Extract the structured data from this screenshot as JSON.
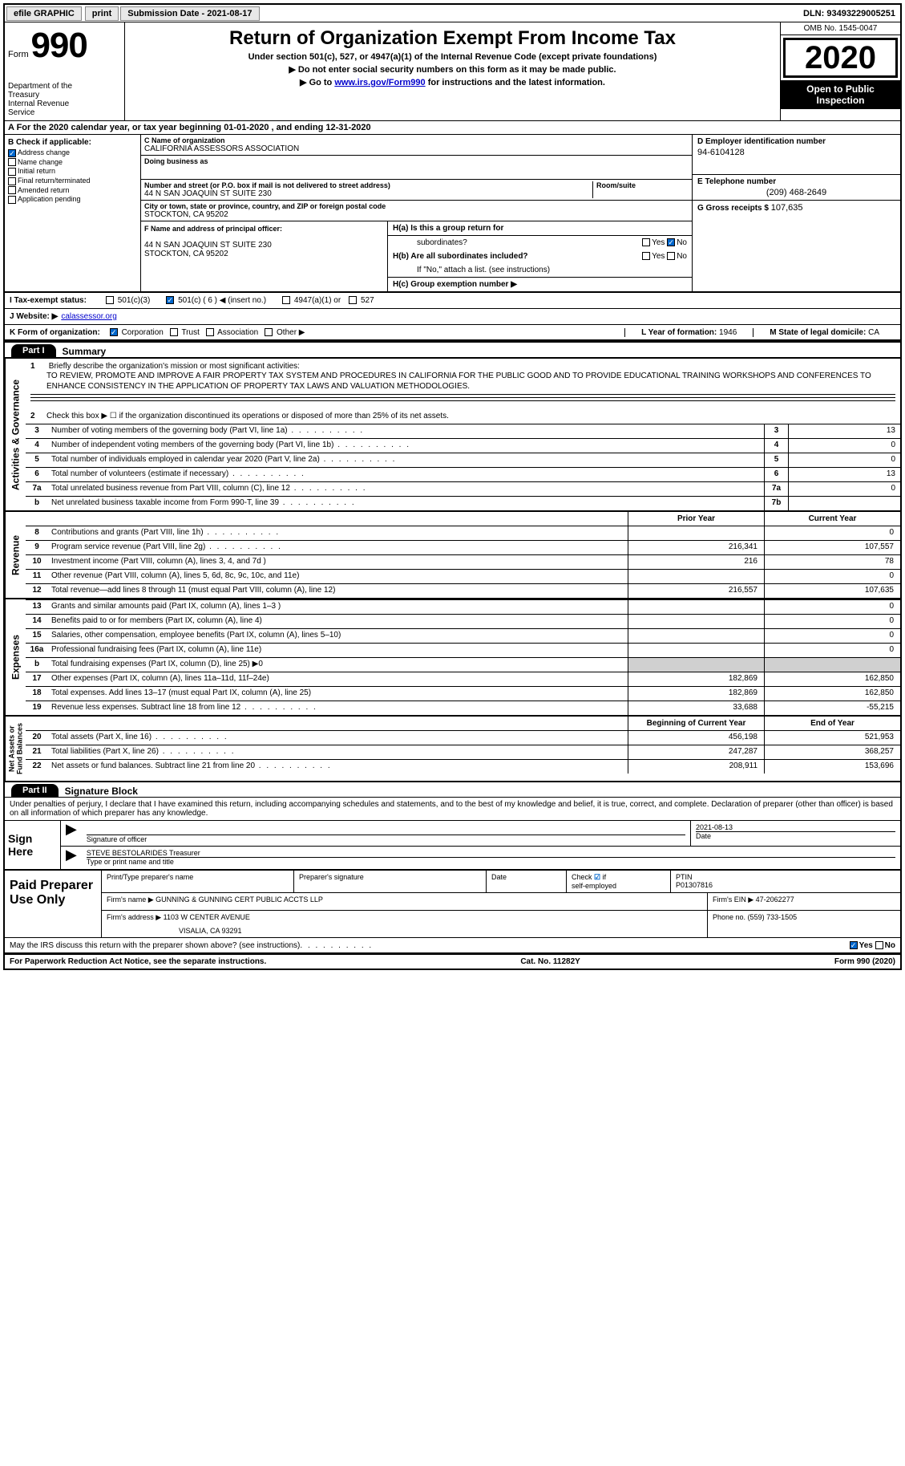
{
  "colors": {
    "black": "#000000",
    "white": "#ffffff",
    "grey_bg": "#d0d0d0",
    "btn_bg": "#e8e8e8",
    "link_blue": "#0000cc",
    "check_blue": "#0066cc"
  },
  "top": {
    "efile": "efile GRAPHIC",
    "print": "print",
    "submission": "Submission Date - 2021-08-17",
    "dln": "DLN: 93493229005251"
  },
  "header": {
    "form_word": "Form",
    "form_num": "990",
    "dept1": "Department of the",
    "dept2": "Treasury",
    "dept3": "Internal Revenue",
    "dept4": "Service",
    "title": "Return of Organization Exempt From Income Tax",
    "subtitle": "Under section 501(c), 527, or 4947(a)(1) of the Internal Revenue Code (except private foundations)",
    "note1": "▶ Do not enter social security numbers on this form as it may be made public.",
    "note2_pre": "▶ Go to ",
    "note2_link": "www.irs.gov/Form990",
    "note2_post": " for instructions and the latest information.",
    "omb": "OMB No. 1545-0047",
    "year": "2020",
    "open1": "Open to Public",
    "open2": "Inspection"
  },
  "sectionA": "A For the 2020 calendar year, or tax year beginning 01-01-2020     , and ending 12-31-2020",
  "colB": {
    "label": "B Check if applicable:",
    "opts": [
      "Address change",
      "Name change",
      "Initial return",
      "Final return/terminated",
      "Amended return",
      "Application pending"
    ]
  },
  "colC": {
    "name_label": "C Name of organization",
    "name": "CALIFORNIA ASSESSORS ASSOCIATION",
    "dba_label": "Doing business as",
    "addr_label": "Number and street (or P.O. box if mail is not delivered to street address)",
    "addr": "44 N SAN JOAQUIN ST SUITE 230",
    "room_label": "Room/suite",
    "city_label": "City or town, state or province, country, and ZIP or foreign postal code",
    "city": "STOCKTON, CA  95202"
  },
  "colD": {
    "ein_label": "D Employer identification number",
    "ein": "94-6104128",
    "phone_label": "E Telephone number",
    "phone": "(209) 468-2649",
    "gross_label": "G Gross receipts $",
    "gross": "107,635"
  },
  "rowF": {
    "label": "F  Name and address of principal officer:",
    "addr1": "44 N SAN JOAQUIN ST SUITE 230",
    "addr2": "STOCKTON, CA  95202"
  },
  "rowH": {
    "ha": "H(a)  Is this a group return for",
    "ha2": "subordinates?",
    "hb": "H(b)  Are all subordinates included?",
    "hb_note": "If \"No,\" attach a list. (see instructions)",
    "hc": "H(c)  Group exemption number ▶",
    "yes": "Yes",
    "no": "No"
  },
  "rowI": {
    "label": "I   Tax-exempt status:",
    "o1": "501(c)(3)",
    "o2": "501(c) ( 6 ) ◀ (insert no.)",
    "o3": "4947(a)(1) or",
    "o4": "527"
  },
  "rowJ": {
    "label": "J   Website: ▶",
    "val": "calassessor.org"
  },
  "rowK": {
    "label": "K Form of organization:",
    "o1": "Corporation",
    "o2": "Trust",
    "o3": "Association",
    "o4": "Other ▶"
  },
  "rowL": {
    "label": "L Year of formation:",
    "val": "1946"
  },
  "rowM": {
    "label": "M State of legal domicile:",
    "val": "CA"
  },
  "part1": {
    "tag": "Part I",
    "title": "Summary",
    "q1_label": "1",
    "q1": "Briefly describe the organization's mission or most significant activities:",
    "q1_text": "TO REVIEW, PROMOTE AND IMPROVE A FAIR PROPERTY TAX SYSTEM AND PROCEDURES IN CALIFORNIA FOR THE PUBLIC GOOD AND TO PROVIDE EDUCATIONAL TRAINING WORKSHOPS AND CONFERENCES TO ENHANCE CONSISTENCY IN THE APPLICATION OF PROPERTY TAX LAWS AND VALUATION METHODOLOGIES.",
    "q2": "Check this box ▶ ☐  if the organization discontinued its operations or disposed of more than 25% of its net assets.",
    "rows": [
      {
        "n": "3",
        "label": "Number of voting members of the governing body (Part VI, line 1a)",
        "box": "3",
        "val": "13"
      },
      {
        "n": "4",
        "label": "Number of independent voting members of the governing body (Part VI, line 1b)",
        "box": "4",
        "val": "0"
      },
      {
        "n": "5",
        "label": "Total number of individuals employed in calendar year 2020 (Part V, line 2a)",
        "box": "5",
        "val": "0"
      },
      {
        "n": "6",
        "label": "Total number of volunteers (estimate if necessary)",
        "box": "6",
        "val": "13"
      },
      {
        "n": "7a",
        "label": "Total unrelated business revenue from Part VIII, column (C), line 12",
        "box": "7a",
        "val": "0"
      },
      {
        "n": "b",
        "label": "Net unrelated business taxable income from Form 990-T, line 39",
        "box": "7b",
        "val": ""
      }
    ],
    "col_prior": "Prior Year",
    "col_current": "Current Year",
    "revenue": [
      {
        "n": "8",
        "label": "Contributions and grants (Part VIII, line 1h)",
        "v1": "",
        "v2": "0"
      },
      {
        "n": "9",
        "label": "Program service revenue (Part VIII, line 2g)",
        "v1": "216,341",
        "v2": "107,557"
      },
      {
        "n": "10",
        "label": "Investment income (Part VIII, column (A), lines 3, 4, and 7d )",
        "v1": "216",
        "v2": "78"
      },
      {
        "n": "11",
        "label": "Other revenue (Part VIII, column (A), lines 5, 6d, 8c, 9c, 10c, and 11e)",
        "v1": "",
        "v2": "0"
      },
      {
        "n": "12",
        "label": "Total revenue—add lines 8 through 11 (must equal Part VIII, column (A), line 12)",
        "v1": "216,557",
        "v2": "107,635"
      }
    ],
    "expenses": [
      {
        "n": "13",
        "label": "Grants and similar amounts paid (Part IX, column (A), lines 1–3 )",
        "v1": "",
        "v2": "0"
      },
      {
        "n": "14",
        "label": "Benefits paid to or for members (Part IX, column (A), line 4)",
        "v1": "",
        "v2": "0"
      },
      {
        "n": "15",
        "label": "Salaries, other compensation, employee benefits (Part IX, column (A), lines 5–10)",
        "v1": "",
        "v2": "0"
      },
      {
        "n": "16a",
        "label": "Professional fundraising fees (Part IX, column (A), line 11e)",
        "v1": "",
        "v2": "0"
      },
      {
        "n": "b",
        "label": "Total fundraising expenses (Part IX, column (D), line 25) ▶0",
        "v1": "grey",
        "v2": "grey"
      },
      {
        "n": "17",
        "label": "Other expenses (Part IX, column (A), lines 11a–11d, 11f–24e)",
        "v1": "182,869",
        "v2": "162,850"
      },
      {
        "n": "18",
        "label": "Total expenses. Add lines 13–17 (must equal Part IX, column (A), line 25)",
        "v1": "182,869",
        "v2": "162,850"
      },
      {
        "n": "19",
        "label": "Revenue less expenses. Subtract line 18 from line 12",
        "v1": "33,688",
        "v2": "-55,215"
      }
    ],
    "col_begin": "Beginning of Current Year",
    "col_end": "End of Year",
    "balances": [
      {
        "n": "20",
        "label": "Total assets (Part X, line 16)",
        "v1": "456,198",
        "v2": "521,953"
      },
      {
        "n": "21",
        "label": "Total liabilities (Part X, line 26)",
        "v1": "247,287",
        "v2": "368,257"
      },
      {
        "n": "22",
        "label": "Net assets or fund balances. Subtract line 21 from line 20",
        "v1": "208,911",
        "v2": "153,696"
      }
    ]
  },
  "part2": {
    "tag": "Part II",
    "title": "Signature Block",
    "decl": "Under penalties of perjury, I declare that I have examined this return, including accompanying schedules and statements, and to the best of my knowledge and belief, it is true, correct, and complete. Declaration of preparer (other than officer) is based on all information of which preparer has any knowledge.",
    "sign_here": "Sign Here",
    "sig_officer": "Signature of officer",
    "sig_date": "Date",
    "sig_date_val": "2021-08-13",
    "sig_name": "STEVE BESTOLARIDES  Treasurer",
    "sig_name_label": "Type or print name and title",
    "paid": "Paid Preparer Use Only",
    "prep_name_label": "Print/Type preparer's name",
    "prep_sig_label": "Preparer's signature",
    "prep_date_label": "Date",
    "prep_check": "Check ☑ if self-employed",
    "prep_ptin_label": "PTIN",
    "prep_ptin": "P01307816",
    "firm_name_label": "Firm's name    ▶",
    "firm_name": "GUNNING & GUNNING CERT PUBLIC ACCTS LLP",
    "firm_ein_label": "Firm's EIN ▶",
    "firm_ein": "47-2062277",
    "firm_addr_label": "Firm's address ▶",
    "firm_addr1": "1103 W CENTER AVENUE",
    "firm_addr2": "VISALIA, CA  93291",
    "firm_phone_label": "Phone no.",
    "firm_phone": "(559) 733-1505",
    "discuss": "May the IRS discuss this return with the preparer shown above? (see instructions)"
  },
  "footer": {
    "left": "For Paperwork Reduction Act Notice, see the separate instructions.",
    "center": "Cat. No. 11282Y",
    "right": "Form 990 (2020)"
  }
}
